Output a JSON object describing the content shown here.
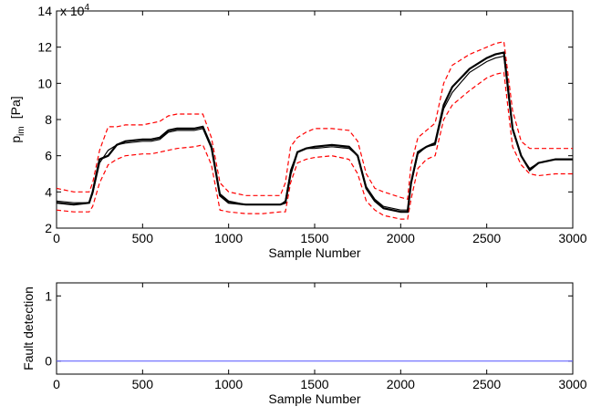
{
  "chart_data": [
    {
      "type": "line",
      "ylabel": "p",
      "ylabel_subscript": "im",
      "ylabel_unit": "[Pa]",
      "y_scale_label": "x 10",
      "y_scale_exponent": 4,
      "xlabel": "Sample Number",
      "x": [
        0,
        100,
        190,
        210,
        250,
        300,
        350,
        400,
        500,
        550,
        600,
        650,
        700,
        800,
        850,
        900,
        950,
        1000,
        1100,
        1200,
        1300,
        1330,
        1360,
        1400,
        1450,
        1500,
        1600,
        1700,
        1750,
        1800,
        1850,
        1900,
        2000,
        2040,
        2060,
        2100,
        2150,
        2200,
        2250,
        2300,
        2400,
        2500,
        2550,
        2600,
        2650,
        2700,
        2750,
        2800,
        2900,
        3000
      ],
      "xlim": [
        0,
        3000
      ],
      "xticks": [
        0,
        500,
        1000,
        1500,
        2000,
        2500,
        3000
      ],
      "ylim": [
        2,
        14
      ],
      "yticks": [
        2,
        4,
        6,
        8,
        10,
        12,
        14
      ],
      "series": [
        {
          "color": "#ff0000",
          "style": "dashed",
          "values": [
            4.2,
            4.0,
            4.0,
            4.5,
            6.3,
            7.6,
            7.6,
            7.7,
            7.7,
            7.8,
            7.9,
            8.2,
            8.3,
            8.3,
            8.3,
            7.0,
            4.5,
            4.0,
            3.8,
            3.8,
            3.8,
            4.5,
            6.5,
            7.0,
            7.3,
            7.5,
            7.5,
            7.4,
            6.8,
            5.0,
            4.2,
            4.0,
            3.7,
            3.6,
            5.5,
            7.0,
            7.4,
            7.8,
            10.0,
            11.0,
            11.6,
            12.0,
            12.2,
            12.3,
            8.5,
            6.8,
            6.4,
            6.4,
            6.4,
            6.4
          ]
        },
        {
          "color": "#ff0000",
          "style": "dashed",
          "values": [
            3.0,
            2.9,
            2.9,
            3.2,
            4.5,
            5.5,
            5.8,
            6.0,
            6.1,
            6.1,
            6.2,
            6.3,
            6.4,
            6.5,
            6.6,
            5.5,
            3.0,
            2.9,
            2.8,
            2.8,
            2.9,
            2.9,
            4.5,
            5.6,
            5.8,
            5.9,
            6.0,
            5.8,
            5.0,
            3.5,
            3.0,
            2.7,
            2.5,
            2.5,
            3.6,
            5.3,
            5.8,
            6.0,
            8.0,
            8.8,
            9.6,
            10.3,
            10.5,
            10.6,
            6.5,
            5.5,
            5.0,
            4.9,
            5.0,
            5.0
          ]
        },
        {
          "color": "#000000",
          "style": "thin",
          "values": [
            3.5,
            3.4,
            3.4,
            3.9,
            5.6,
            6.3,
            6.6,
            6.7,
            6.8,
            6.8,
            6.9,
            7.3,
            7.4,
            7.4,
            7.5,
            6.4,
            3.9,
            3.5,
            3.3,
            3.3,
            3.3,
            3.5,
            5.2,
            6.2,
            6.4,
            6.4,
            6.5,
            6.4,
            6.0,
            4.3,
            3.6,
            3.2,
            3.0,
            3.0,
            4.4,
            6.1,
            6.5,
            6.6,
            8.6,
            9.5,
            10.6,
            11.2,
            11.4,
            11.5,
            7.4,
            6.0,
            5.3,
            5.6,
            5.8,
            5.8
          ]
        },
        {
          "color": "#000000",
          "style": "thick",
          "values": [
            3.4,
            3.3,
            3.4,
            4.0,
            5.8,
            6.0,
            6.6,
            6.8,
            6.9,
            6.9,
            7.0,
            7.4,
            7.5,
            7.5,
            7.6,
            6.5,
            3.8,
            3.4,
            3.3,
            3.3,
            3.3,
            3.4,
            5.0,
            6.2,
            6.4,
            6.5,
            6.6,
            6.5,
            6.0,
            4.2,
            3.5,
            3.1,
            2.9,
            2.9,
            4.5,
            6.2,
            6.5,
            6.7,
            8.8,
            9.8,
            10.8,
            11.4,
            11.6,
            11.7,
            7.5,
            6.0,
            5.2,
            5.6,
            5.8,
            5.8
          ]
        }
      ]
    },
    {
      "type": "line",
      "ylabel": "Fault detection",
      "xlabel": "Sample Number",
      "x": [
        0,
        3000
      ],
      "xlim": [
        0,
        3000
      ],
      "xticks": [
        0,
        500,
        1000,
        1500,
        2000,
        2500,
        3000
      ],
      "ylim": [
        -0.2,
        1.2
      ],
      "yticks": [
        0,
        1
      ],
      "series": [
        {
          "color": "#6666ff",
          "style": "thin",
          "values": [
            0,
            0
          ]
        }
      ]
    }
  ]
}
